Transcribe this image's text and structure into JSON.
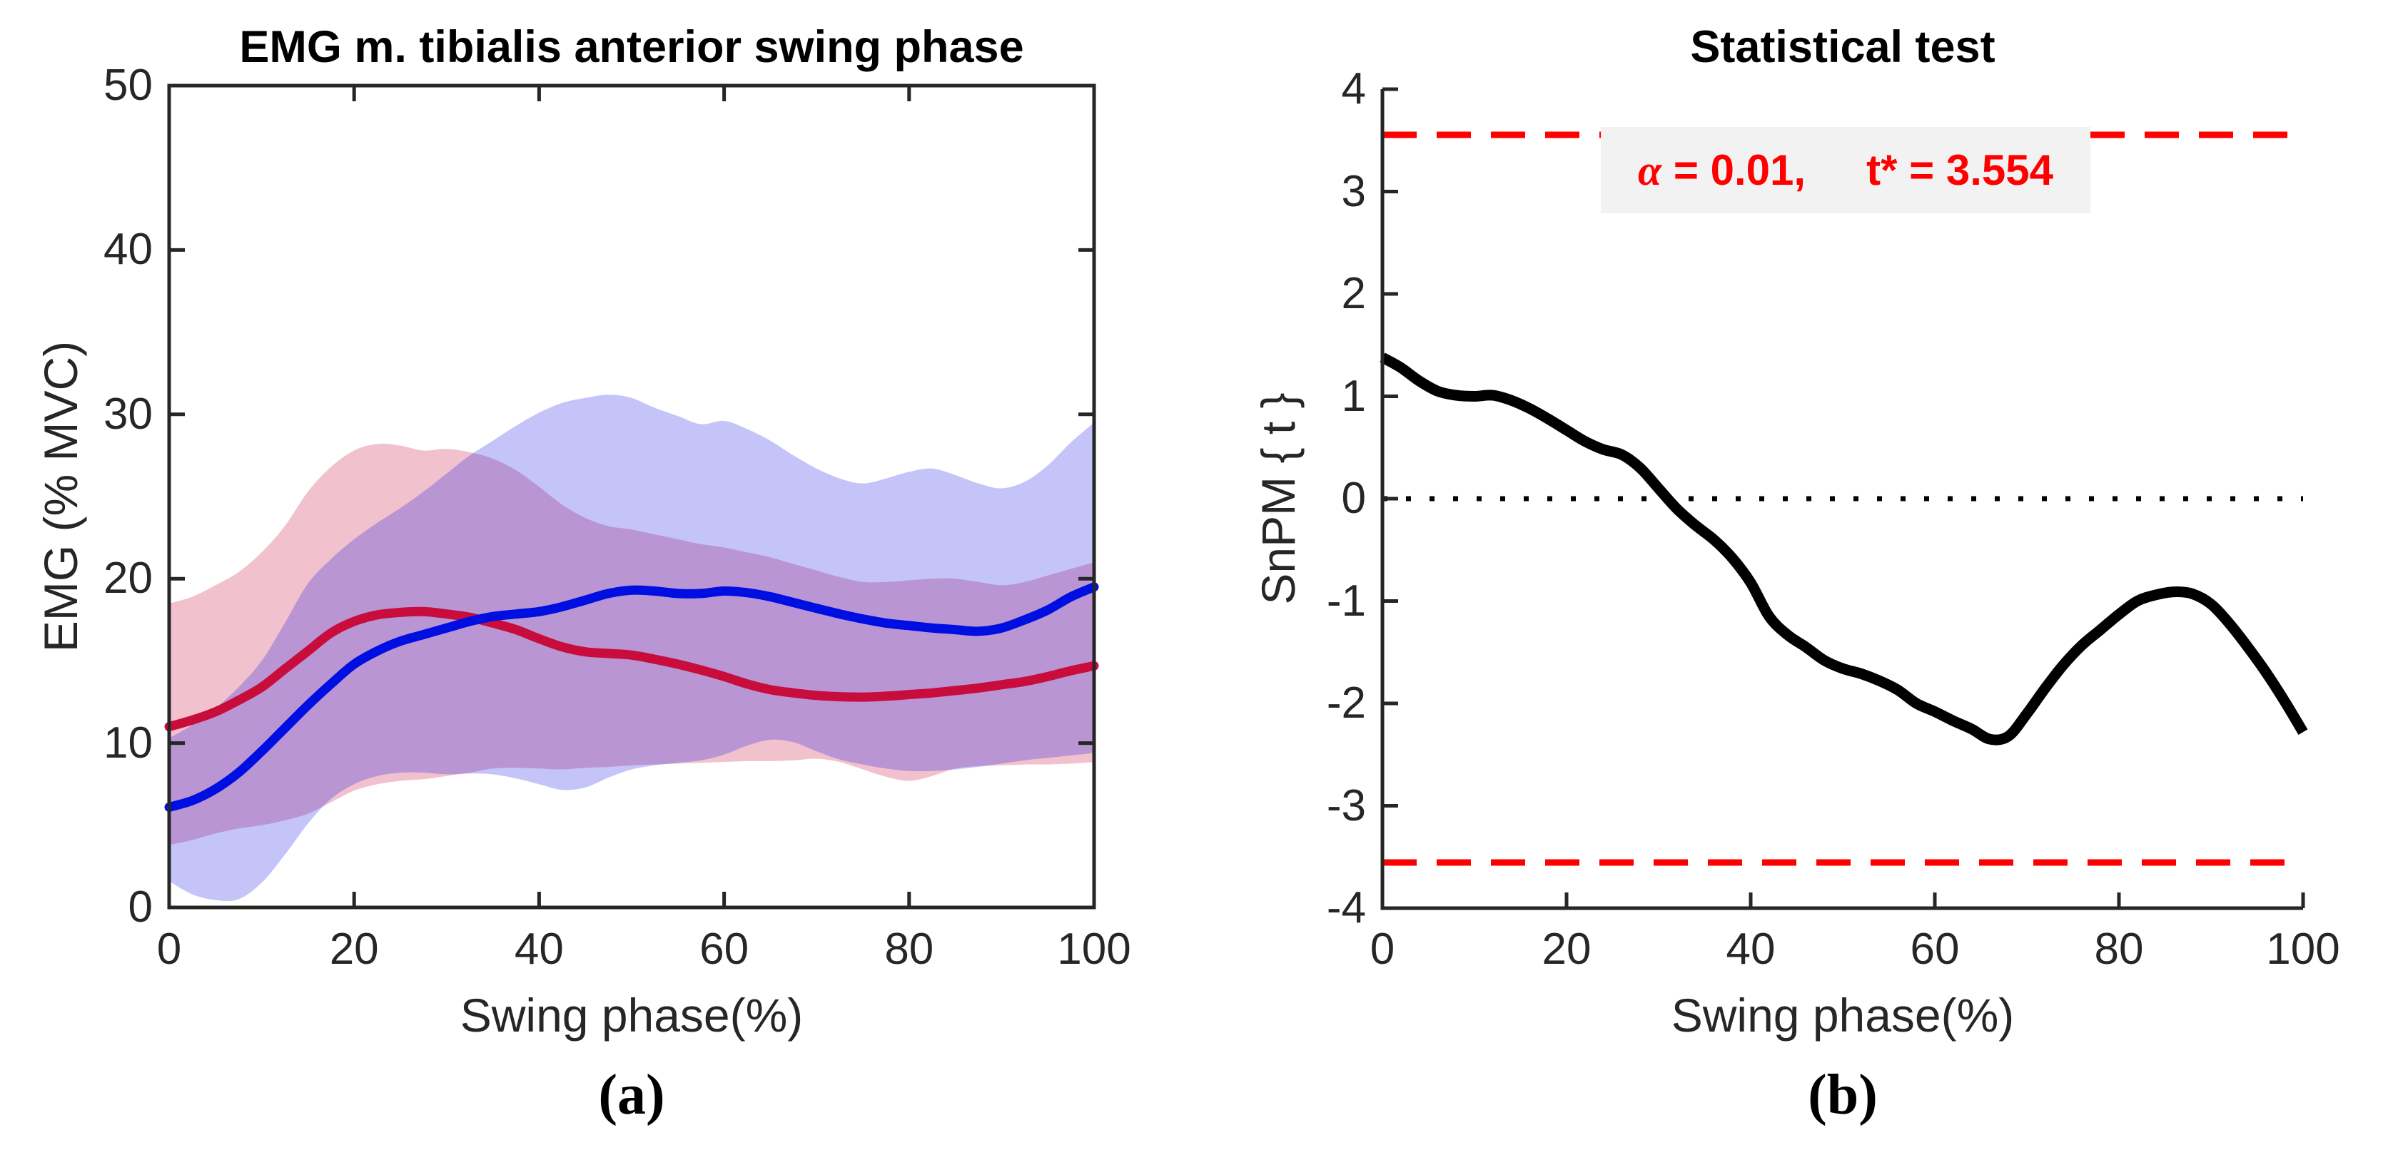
{
  "figure": {
    "background": "#ffffff",
    "axis_color": "#262626"
  },
  "chart_data": [
    {
      "type": "area",
      "title": "EMG m. tibialis anterior swing phase",
      "xlabel": "Swing phase(%)",
      "ylabel": "EMG (% MVC)",
      "caption": "(a)",
      "xlim": [
        0,
        100
      ],
      "ylim": [
        0,
        50
      ],
      "xticks": [
        0,
        20,
        40,
        60,
        80,
        100
      ],
      "yticks": [
        0,
        10,
        20,
        30,
        40,
        50
      ],
      "grid": false,
      "legend": null,
      "x": [
        0,
        2.5,
        5,
        7.5,
        10,
        12.5,
        15,
        17.5,
        20,
        22.5,
        25,
        27.5,
        30,
        32.5,
        35,
        37.5,
        40,
        42.5,
        45,
        47.5,
        50,
        52.5,
        55,
        57.5,
        60,
        62.5,
        65,
        67.5,
        70,
        72.5,
        75,
        77.5,
        80,
        82.5,
        85,
        87.5,
        90,
        92.5,
        95,
        97.5,
        100
      ],
      "series": [
        {
          "name": "red-mean",
          "color": "#c80d3c",
          "values": [
            11.0,
            11.4,
            11.9,
            12.6,
            13.4,
            14.5,
            15.6,
            16.7,
            17.4,
            17.8,
            17.95,
            18.0,
            17.85,
            17.65,
            17.3,
            16.9,
            16.35,
            15.85,
            15.55,
            15.45,
            15.35,
            15.1,
            14.8,
            14.45,
            14.05,
            13.6,
            13.25,
            13.05,
            12.9,
            12.82,
            12.8,
            12.85,
            12.95,
            13.05,
            13.2,
            13.35,
            13.55,
            13.75,
            14.05,
            14.4,
            14.7
          ]
        },
        {
          "name": "blue-mean",
          "color": "#000fe1",
          "values": [
            6.1,
            6.5,
            7.2,
            8.2,
            9.5,
            10.9,
            12.3,
            13.6,
            14.8,
            15.6,
            16.2,
            16.6,
            17.0,
            17.4,
            17.7,
            17.85,
            18.0,
            18.3,
            18.7,
            19.1,
            19.3,
            19.25,
            19.1,
            19.1,
            19.25,
            19.15,
            18.9,
            18.55,
            18.2,
            17.85,
            17.55,
            17.3,
            17.15,
            17.0,
            16.9,
            16.8,
            17.0,
            17.5,
            18.1,
            18.9,
            19.5
          ]
        }
      ],
      "bands": [
        {
          "name": "red-band",
          "fill": "rgba(200,13,60,0.25)",
          "upper": [
            18.5,
            18.9,
            19.6,
            20.4,
            21.6,
            23.2,
            25.3,
            26.8,
            27.8,
            28.2,
            28.1,
            27.8,
            27.9,
            27.7,
            27.3,
            26.6,
            25.6,
            24.5,
            23.7,
            23.2,
            23.0,
            22.7,
            22.4,
            22.1,
            21.9,
            21.6,
            21.3,
            20.9,
            20.5,
            20.1,
            19.8,
            19.8,
            19.9,
            20.0,
            20.0,
            19.8,
            19.6,
            19.8,
            20.2,
            20.6,
            21.0
          ],
          "lower": [
            3.8,
            4.1,
            4.5,
            4.8,
            5.0,
            5.3,
            5.7,
            6.4,
            7.1,
            7.5,
            7.7,
            7.8,
            8.0,
            8.2,
            8.45,
            8.5,
            8.45,
            8.4,
            8.5,
            8.55,
            8.65,
            8.7,
            8.75,
            8.8,
            8.85,
            8.9,
            8.9,
            8.95,
            9.05,
            8.85,
            8.4,
            7.95,
            7.7,
            8.0,
            8.45,
            8.6,
            8.65,
            8.7,
            8.7,
            8.75,
            8.85
          ]
        },
        {
          "name": "blue-band",
          "fill": "rgba(10,10,230,0.24)",
          "upper": [
            10.3,
            11.1,
            12.1,
            13.4,
            15.0,
            17.3,
            19.7,
            21.2,
            22.4,
            23.4,
            24.3,
            25.3,
            26.4,
            27.5,
            28.4,
            29.3,
            30.1,
            30.7,
            31.0,
            31.2,
            31.0,
            30.4,
            29.9,
            29.4,
            29.6,
            29.1,
            28.4,
            27.5,
            26.7,
            26.1,
            25.8,
            26.1,
            26.5,
            26.7,
            26.3,
            25.8,
            25.5,
            25.9,
            26.9,
            28.3,
            29.5
          ],
          "lower": [
            1.6,
            0.8,
            0.45,
            0.5,
            1.5,
            3.2,
            5.1,
            6.6,
            7.5,
            8.0,
            8.2,
            8.2,
            8.1,
            8.15,
            8.1,
            7.85,
            7.5,
            7.15,
            7.3,
            7.9,
            8.4,
            8.65,
            8.8,
            8.95,
            9.3,
            9.85,
            10.2,
            10.05,
            9.5,
            9.0,
            8.7,
            8.45,
            8.3,
            8.3,
            8.4,
            8.55,
            8.75,
            8.95,
            9.1,
            9.25,
            9.4
          ]
        }
      ]
    },
    {
      "type": "line",
      "title": "Statistical test",
      "xlabel": "Swing phase(%)",
      "ylabel": "SnPM { t }",
      "caption": "(b)",
      "xlim": [
        0,
        100
      ],
      "ylim": [
        -4,
        4
      ],
      "xticks": [
        0,
        20,
        40,
        60,
        80,
        100
      ],
      "yticks": [
        -4,
        -3,
        -2,
        -1,
        0,
        1,
        2,
        3,
        4
      ],
      "grid": false,
      "legend": null,
      "alpha_value": 0.01,
      "threshold_value": 3.554,
      "threshold_lines": [
        3.554,
        -3.554
      ],
      "zero_line": 0,
      "threshold_style": {
        "color": "#ff0000",
        "dash": "48 28",
        "width": 9
      },
      "zero_line_style": {
        "color": "#000000",
        "dash": "7 26",
        "width": 7
      },
      "annotation": {
        "alpha_symbol": "α",
        "alpha_rest": " = 0.01,",
        "tstar_text": "t* = 3.554",
        "color": "#ff0000",
        "box_fill": "#f2f2f2"
      },
      "x": [
        0,
        2,
        4,
        6,
        8,
        10,
        12,
        14,
        16,
        18,
        20,
        22,
        24,
        26,
        28,
        30,
        32,
        34,
        36,
        38,
        40,
        42,
        44,
        46,
        48,
        50,
        52,
        54,
        56,
        58,
        60,
        62,
        64,
        66,
        68,
        70,
        72,
        74,
        76,
        78,
        80,
        82,
        84,
        86,
        88,
        90,
        92,
        94,
        96,
        98,
        100
      ],
      "series": [
        {
          "name": "snpm-t",
          "color": "#000000",
          "values": [
            1.38,
            1.28,
            1.15,
            1.05,
            1.01,
            1.0,
            1.01,
            0.96,
            0.88,
            0.78,
            0.67,
            0.56,
            0.48,
            0.43,
            0.3,
            0.1,
            -0.1,
            -0.26,
            -0.4,
            -0.58,
            -0.82,
            -1.15,
            -1.33,
            -1.45,
            -1.58,
            -1.66,
            -1.71,
            -1.78,
            -1.87,
            -2.0,
            -2.08,
            -2.17,
            -2.25,
            -2.35,
            -2.32,
            -2.1,
            -1.85,
            -1.62,
            -1.43,
            -1.28,
            -1.13,
            -1.0,
            -0.94,
            -0.91,
            -0.93,
            -1.03,
            -1.22,
            -1.45,
            -1.7,
            -1.98,
            -2.28
          ]
        }
      ]
    }
  ]
}
